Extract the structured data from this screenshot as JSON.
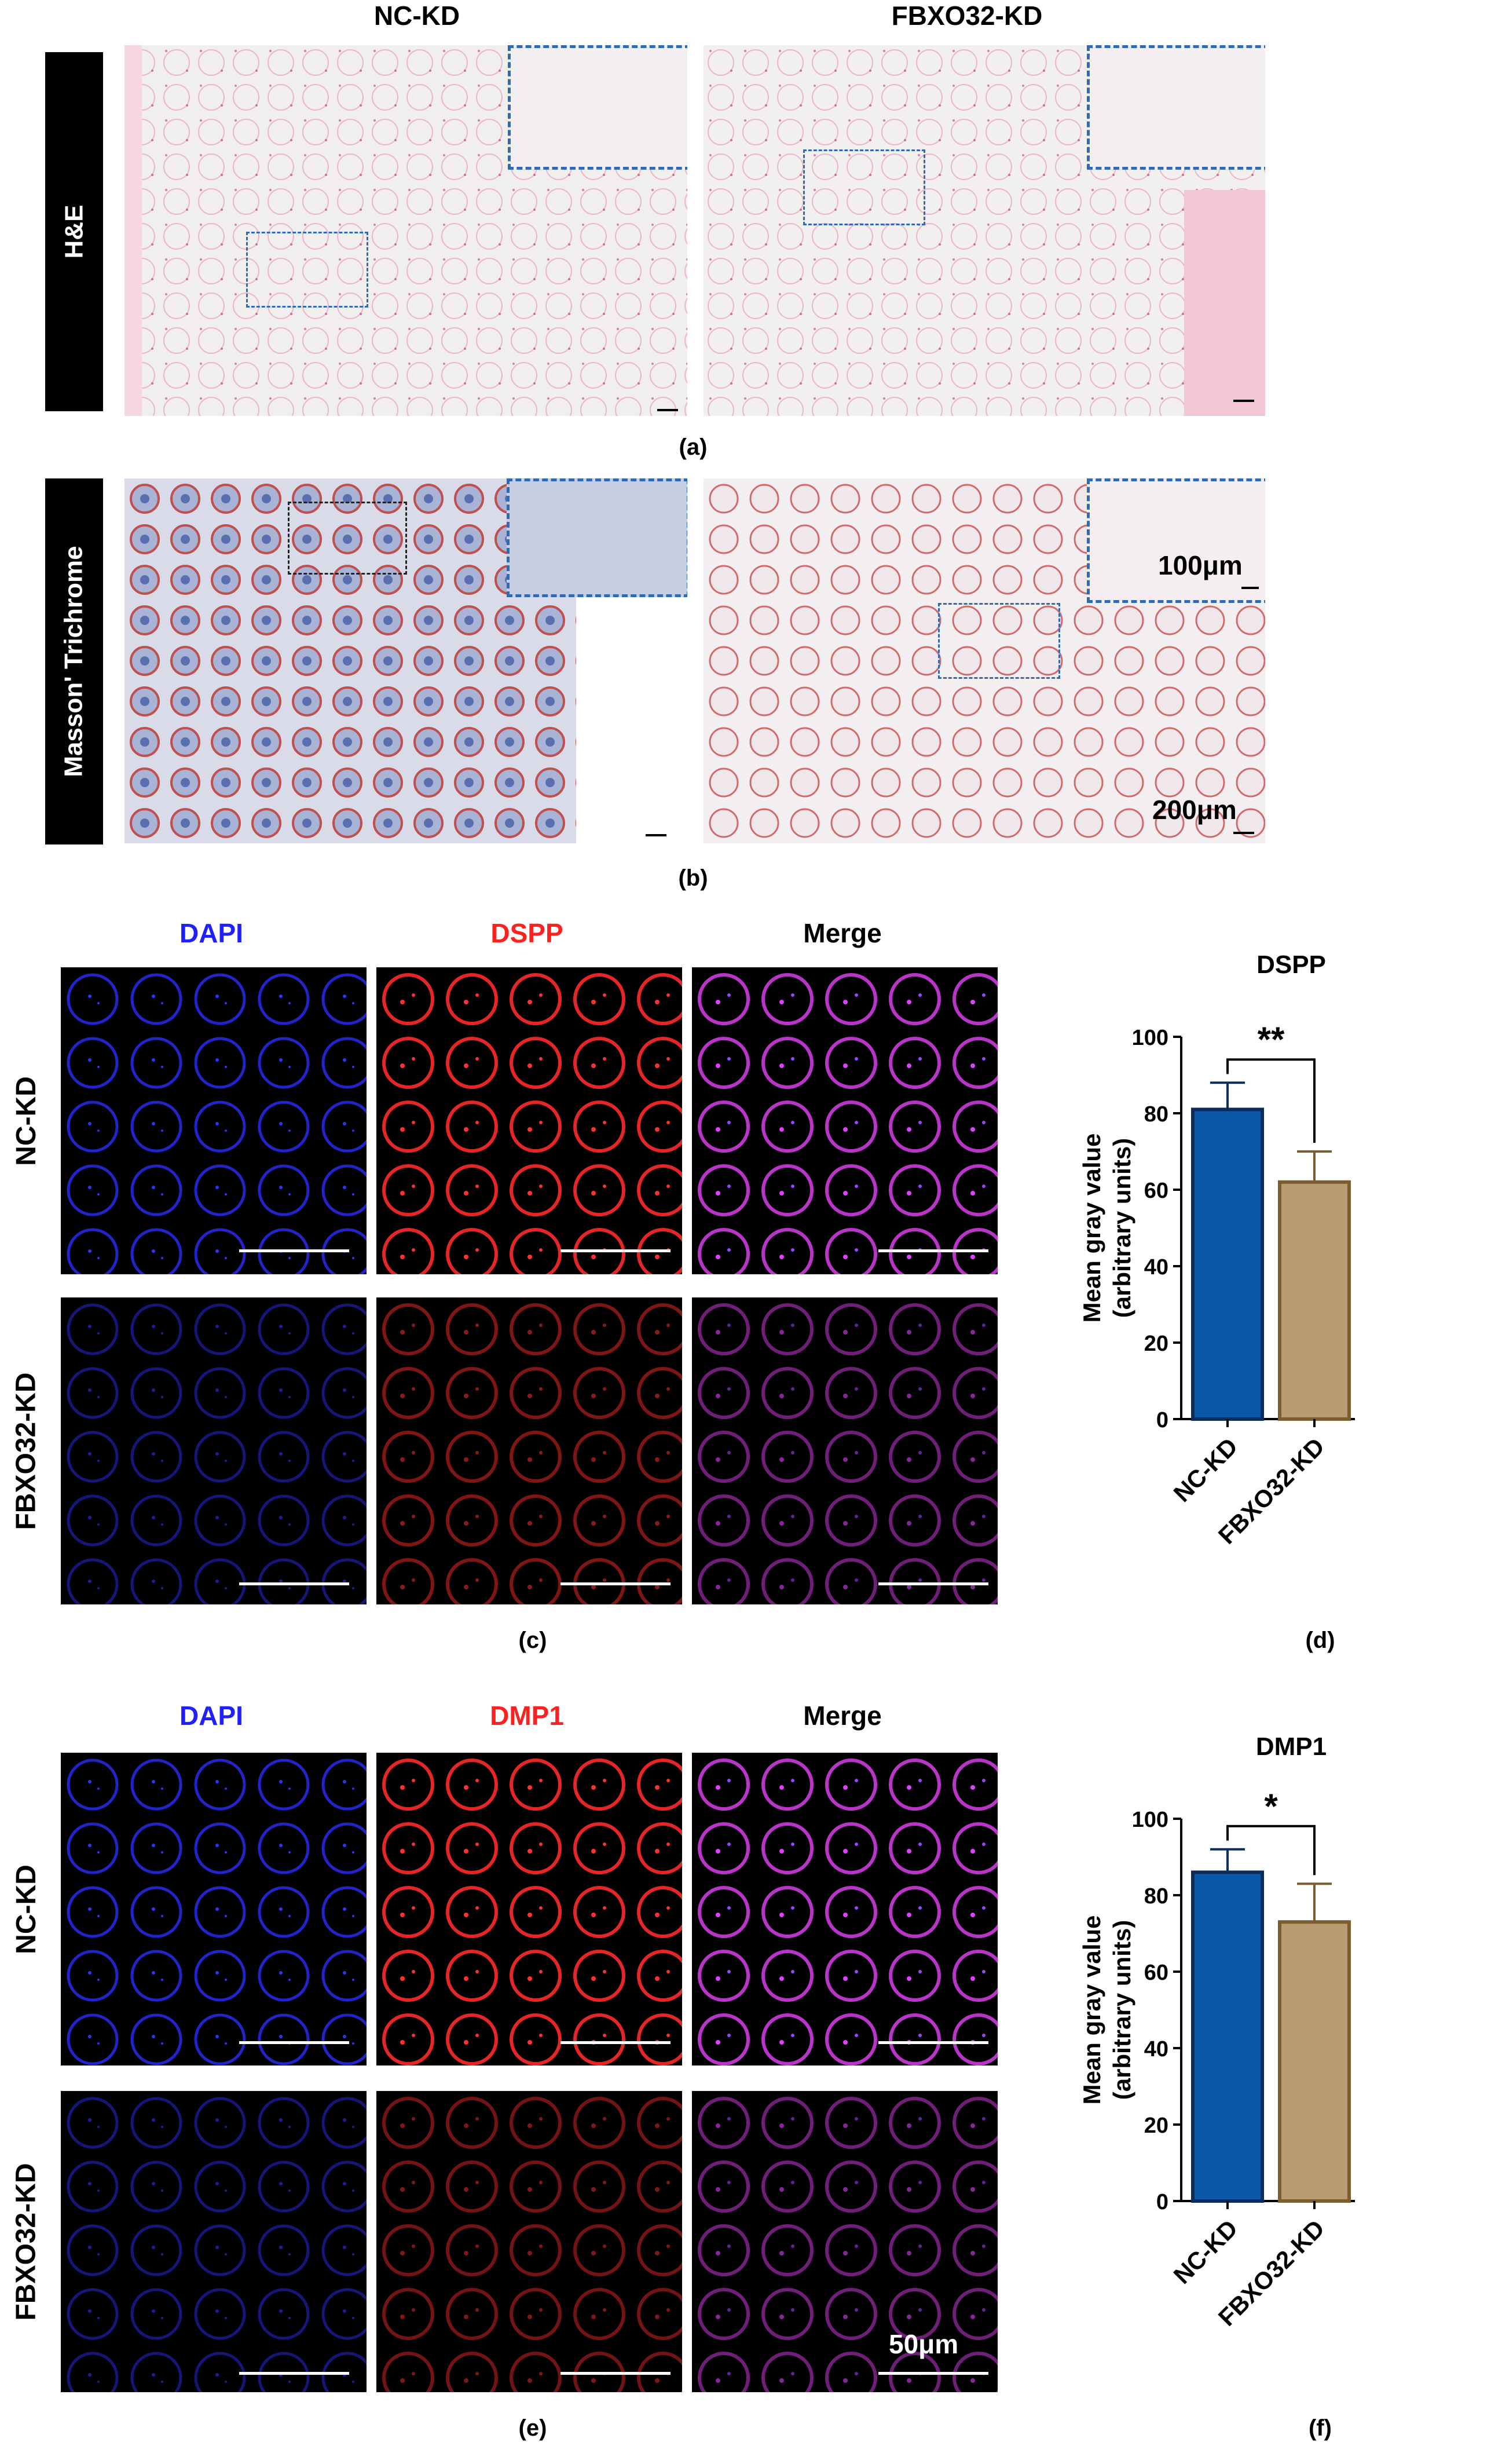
{
  "panel_a": {
    "col_labels": [
      "NC-KD",
      "FBXO32-KD"
    ],
    "stain_label": "H&E",
    "letter": "(a)"
  },
  "panel_b": {
    "stain_label": "Masson' Trichrome",
    "scale_inset": "100μm",
    "scale_main": "200μm",
    "letter": "(b)"
  },
  "panel_c": {
    "col_labels": [
      "DAPI",
      "DSPP",
      "Merge"
    ],
    "row_labels": [
      "NC-KD",
      "FBXO32-KD"
    ],
    "letter": "(c)",
    "colors": {
      "dapi": "#1f1fff",
      "marker": "#ff2020",
      "merge": "#000000"
    }
  },
  "panel_e": {
    "col_labels": [
      "DAPI",
      "DMP1",
      "Merge"
    ],
    "row_labels": [
      "NC-KD",
      "FBXO32-KD"
    ],
    "scale": "50μm",
    "letter": "(e)"
  },
  "chart_d": {
    "letter": "(d)",
    "significance": "**"
  },
  "chart_f": {
    "letter": "(f)",
    "significance": "*"
  },
  "chart_data": [
    {
      "type": "bar",
      "title": "DSPP",
      "categories": [
        "NC-KD",
        "FBXO32-KD"
      ],
      "values": [
        81,
        62
      ],
      "errors": [
        7,
        8
      ],
      "ylabel": "Mean gray value\n(arbitrary units)",
      "ylim": [
        0,
        100
      ],
      "yticks": [
        0,
        20,
        40,
        60,
        80,
        100
      ],
      "colors": [
        "#0b57a8",
        "#b89b70"
      ],
      "edge_colors": [
        "#0b2d5c",
        "#7a5e30"
      ]
    },
    {
      "type": "bar",
      "title": "DMP1",
      "categories": [
        "NC-KD",
        "FBXO32-KD"
      ],
      "values": [
        86,
        73
      ],
      "errors": [
        6,
        10
      ],
      "ylabel": "Mean gray value\n(arbitrary units)",
      "ylim": [
        0,
        100
      ],
      "yticks": [
        0,
        20,
        40,
        60,
        80,
        100
      ],
      "colors": [
        "#0b57a8",
        "#b89b70"
      ],
      "edge_colors": [
        "#0b2d5c",
        "#7a5e30"
      ]
    }
  ]
}
